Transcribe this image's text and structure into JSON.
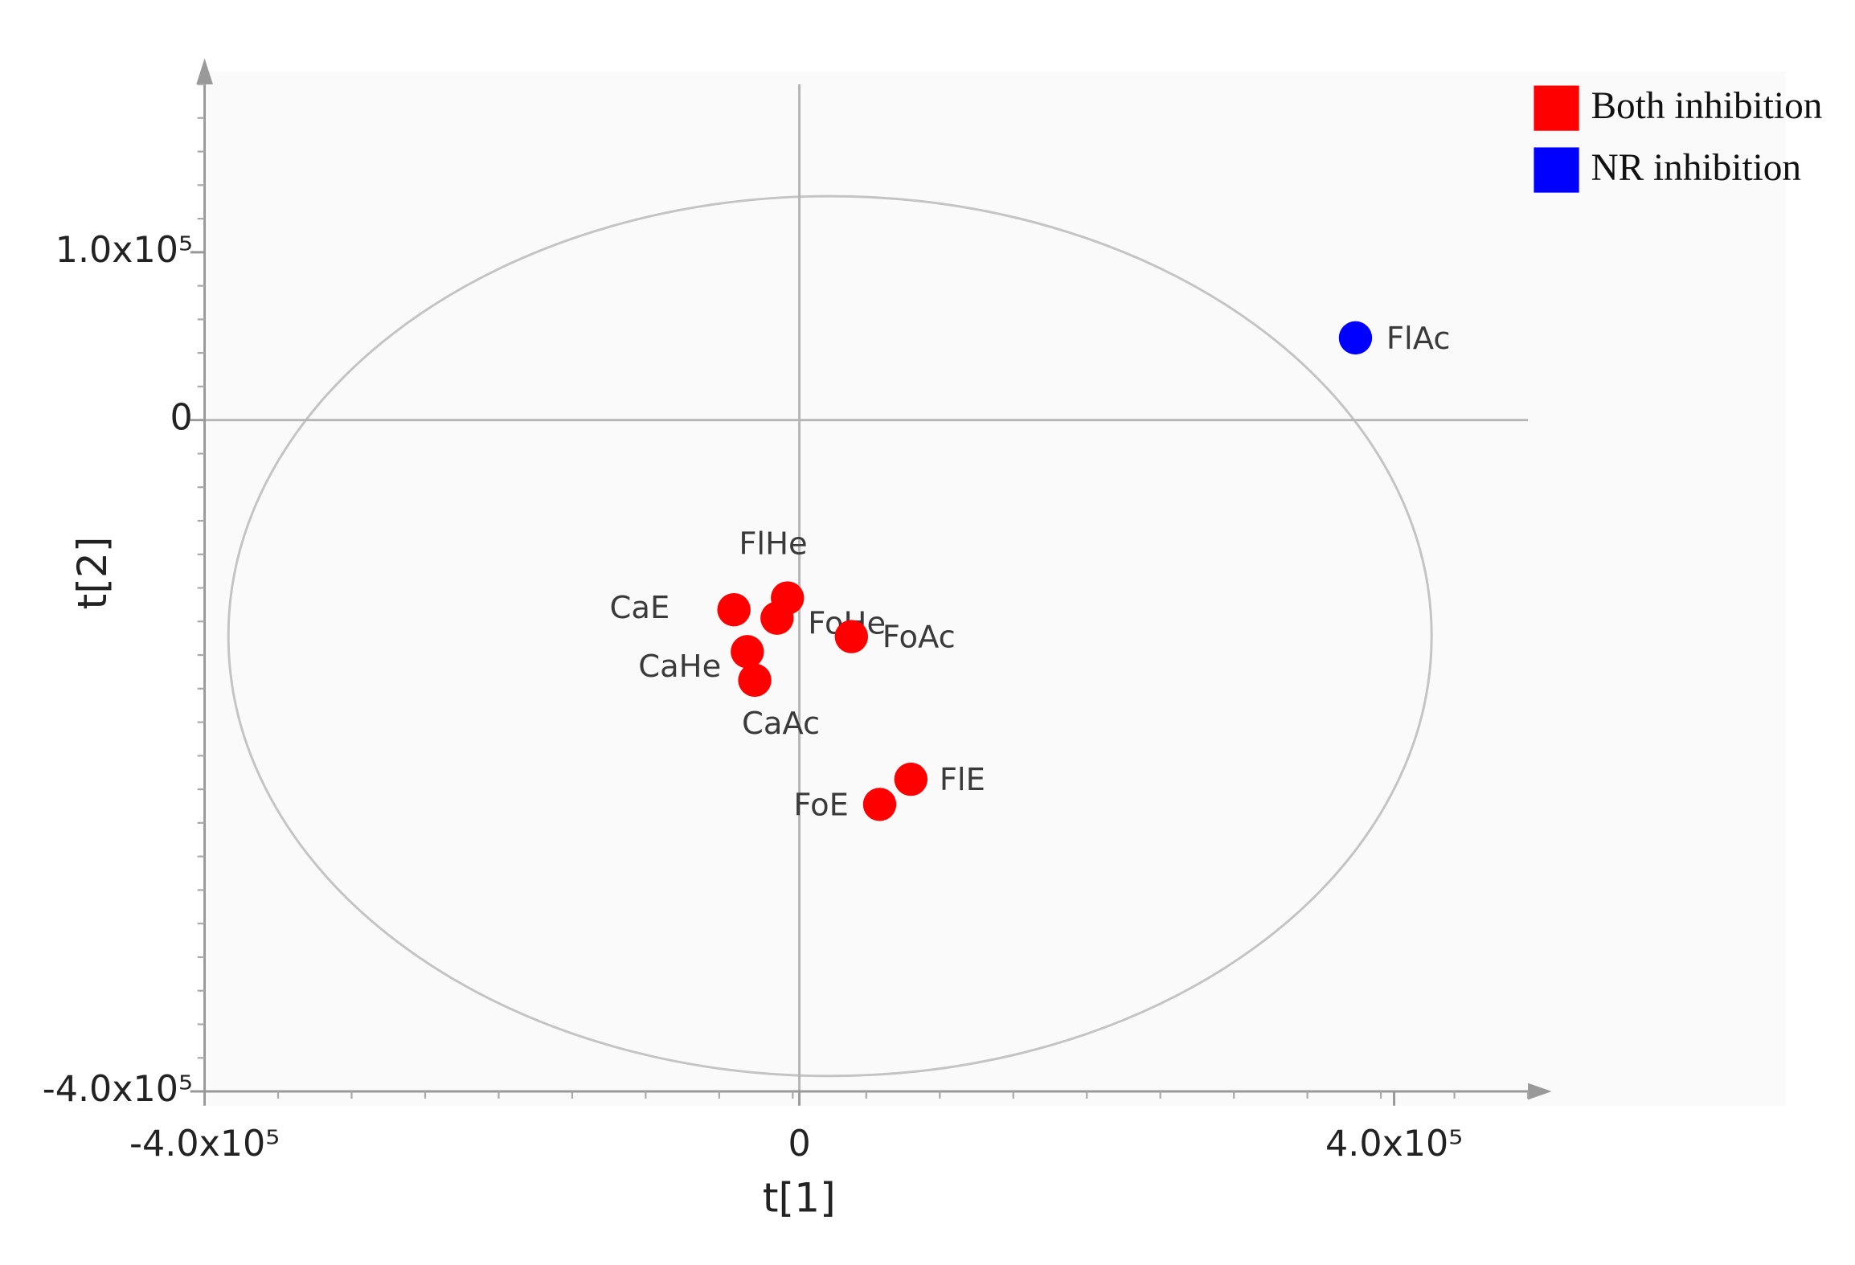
{
  "chart_data": {
    "type": "scatter",
    "x_label": "t[1]",
    "y_label": "t[2]",
    "xlim": [
      -400000,
      490000
    ],
    "ylim": [
      -400000,
      200000
    ],
    "xticks": [
      {
        "value": -400000,
        "label": "-4.0x10⁵"
      },
      0,
      {
        "value": 400000,
        "label": "4.0x10⁵"
      }
    ],
    "yticks": [
      {
        "value": 100000,
        "label": "1.0x10⁵"
      },
      0,
      {
        "value": -400000,
        "label": "-4.0x10⁵"
      }
    ],
    "series": [
      {
        "name": "Both inhibition",
        "color": "#ff0000",
        "x": [
          -44000,
          -8000,
          -15000,
          35000,
          -35000,
          -30000,
          75000,
          54000
        ],
        "y": [
          -113000,
          -106000,
          -118000,
          -129000,
          -138000,
          -155000,
          -214000,
          -229000
        ],
        "labels": [
          "CaE",
          "FlHe",
          "FoHe",
          "FoAc",
          "CaHe",
          "CaAc",
          "FlE",
          "FoE"
        ]
      },
      {
        "name": "NR inhibition",
        "color": "#0000ff",
        "x": [
          374000
        ],
        "y": [
          49000
        ],
        "labels": [
          "FlAc"
        ]
      }
    ]
  }
}
